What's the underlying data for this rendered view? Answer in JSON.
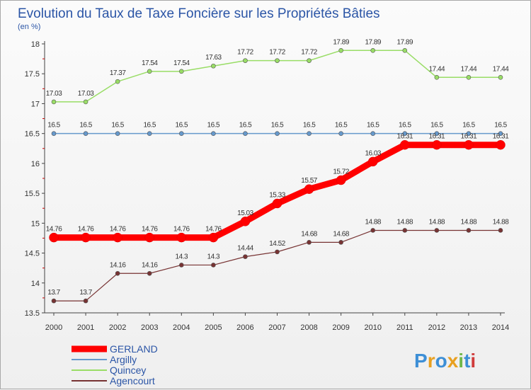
{
  "chart_data": {
    "type": "line",
    "title": "Evolution du Taux de Taxe Foncière sur les Propriétés Bâties",
    "subtitle": "(en %)",
    "xlabel": "",
    "ylabel": "",
    "x": [
      "2000",
      "2001",
      "2002",
      "2003",
      "2004",
      "2005",
      "2006",
      "2007",
      "2008",
      "2009",
      "2010",
      "2011",
      "2012",
      "2013",
      "2014"
    ],
    "ylim": [
      13.5,
      18
    ],
    "yticks": [
      "13.5",
      "14",
      "14.5",
      "15",
      "15.5",
      "16",
      "16.5",
      "17",
      "17.5",
      "18"
    ],
    "grid": false,
    "legend_position": "bottom-left",
    "series": [
      {
        "name": "GERLAND",
        "color": "#ff0000",
        "values": [
          14.76,
          14.76,
          14.76,
          14.76,
          14.76,
          14.76,
          15.03,
          15.33,
          15.57,
          15.72,
          16.03,
          16.31,
          16.31,
          16.31,
          16.31
        ],
        "labels": [
          "14.76",
          "14.76",
          "14.76",
          "14.76",
          "14.76",
          "14.76",
          "15.03",
          "15.33",
          "15.57",
          "15.72",
          "16.03",
          "16.31",
          "16.31",
          "16.31",
          "16.31"
        ]
      },
      {
        "name": "Argilly",
        "color": "#6699cc",
        "values": [
          16.5,
          16.5,
          16.5,
          16.5,
          16.5,
          16.5,
          16.5,
          16.5,
          16.5,
          16.5,
          16.5,
          16.5,
          16.5,
          16.5,
          16.5
        ],
        "labels": [
          "16.5",
          "16.5",
          "16.5",
          "16.5",
          "16.5",
          "16.5",
          "16.5",
          "16.5",
          "16.5",
          "16.5",
          "16.5",
          "16.5",
          "16.5",
          "16.5",
          "16.5"
        ]
      },
      {
        "name": "Quincey",
        "color": "#99dd66",
        "values": [
          17.03,
          17.03,
          17.37,
          17.54,
          17.54,
          17.63,
          17.72,
          17.72,
          17.72,
          17.89,
          17.89,
          17.89,
          17.44,
          17.44,
          17.44
        ],
        "labels": [
          "17.03",
          "17.03",
          "17.37",
          "17.54",
          "17.54",
          "17.63",
          "17.72",
          "17.72",
          "17.72",
          "17.89",
          "17.89",
          "17.89",
          "17.44",
          "17.44",
          "17.44"
        ]
      },
      {
        "name": "Agencourt",
        "color": "#773333",
        "values": [
          13.7,
          13.7,
          14.16,
          14.16,
          14.3,
          14.3,
          14.44,
          14.52,
          14.68,
          14.68,
          14.88,
          14.88,
          14.88,
          14.88,
          14.88
        ],
        "labels": [
          "13.7",
          "13.7",
          "14.16",
          "14.16",
          "14.3",
          "14.3",
          "14.44",
          "14.52",
          "14.68",
          "14.68",
          "14.88",
          "14.88",
          "14.88",
          "14.88",
          "14.88"
        ]
      }
    ]
  },
  "brand": {
    "text": "Proxiti",
    "letters": [
      "P",
      "r",
      "o",
      "x",
      "i",
      "t",
      "i"
    ],
    "colors": [
      "#3d8fd6",
      "#e8a020",
      "#3d8fd6",
      "#e8a020",
      "#70b84a",
      "#3d8fd6",
      "#d03c3c"
    ]
  }
}
